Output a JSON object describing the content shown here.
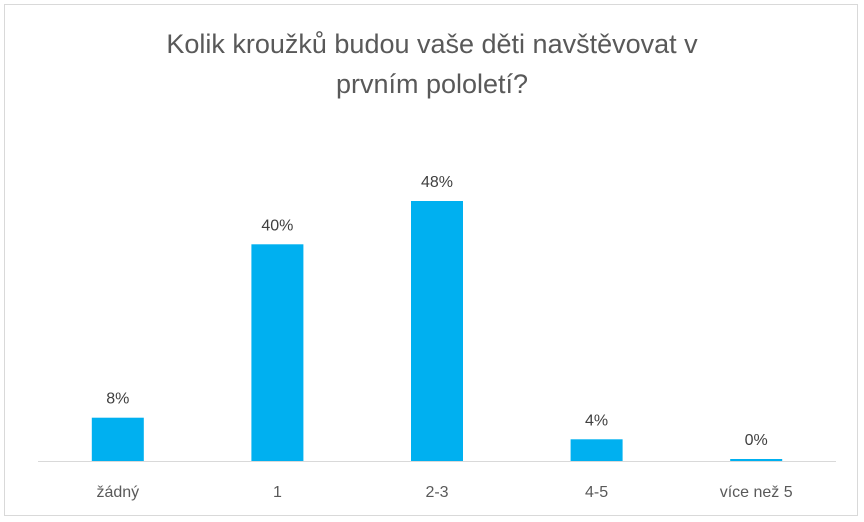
{
  "chart_data": {
    "type": "bar",
    "title_lines": [
      "Kolik kroužků budou vaše děti navštěvovat v",
      "prvním pololetí?"
    ],
    "categories": [
      "žádný",
      "1",
      "2-3",
      "4-5",
      "více než 5"
    ],
    "values": [
      8,
      40,
      48,
      4,
      0
    ],
    "data_labels": [
      "8%",
      "40%",
      "48%",
      "4%",
      "0%"
    ],
    "unit": "%",
    "ylim": [
      0,
      48
    ],
    "grid": false,
    "legend": "none",
    "bar_color": "#00b0f0",
    "axis_color": "#d9d9d9"
  }
}
